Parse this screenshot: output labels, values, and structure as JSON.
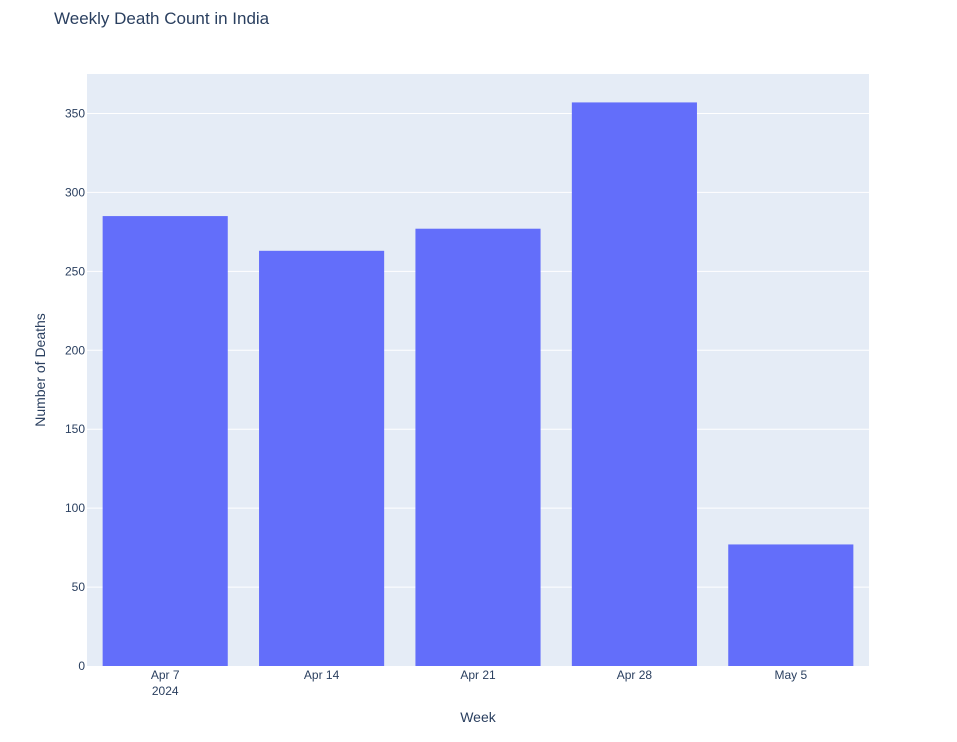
{
  "chart_data": {
    "type": "bar",
    "title": "Weekly Death Count in India",
    "xlabel": "Week",
    "ylabel": "Number of Deaths",
    "categories": [
      "Apr 7",
      "Apr 14",
      "Apr 21",
      "Apr 28",
      "May 5"
    ],
    "x_year_label": "2024",
    "values": [
      285,
      263,
      277,
      357,
      77
    ],
    "ylim": [
      0,
      375
    ],
    "yticks": [
      0,
      50,
      100,
      150,
      200,
      250,
      300,
      350
    ],
    "grid": true,
    "colors": {
      "bar": "#636efa",
      "plot_background": "#e5ecf6",
      "grid": "#ffffff",
      "text": "#2a3f5f"
    }
  }
}
